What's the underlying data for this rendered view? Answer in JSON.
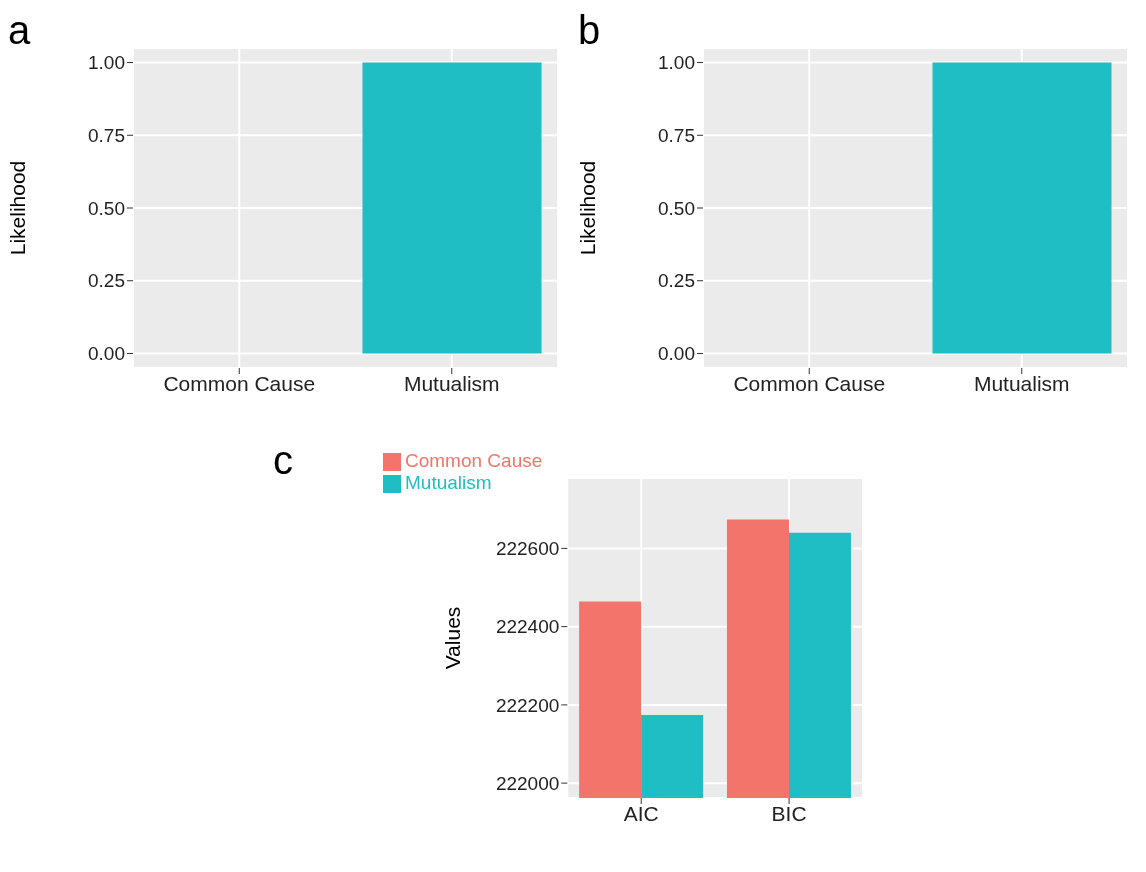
{
  "chart_data": [
    {
      "type": "bar",
      "title": "a",
      "ylabel": "Likelihood",
      "categories": [
        "Common Cause",
        "Mutualism"
      ],
      "values": [
        0,
        1
      ],
      "colors": [
        "#f8766d",
        "#1fbec4"
      ],
      "ylim": [
        -0.05,
        1.05
      ],
      "yticks": [
        {
          "value": 0,
          "label": "0.00"
        },
        {
          "value": 0.25,
          "label": "0.25"
        },
        {
          "value": 0.5,
          "label": "0.50"
        },
        {
          "value": 0.75,
          "label": "0.75"
        },
        {
          "value": 1,
          "label": "1.00"
        }
      ],
      "grid": true
    },
    {
      "type": "bar",
      "title": "b",
      "ylabel": "Likelihood",
      "categories": [
        "Common Cause",
        "Mutualism"
      ],
      "values": [
        0,
        1
      ],
      "colors": [
        "#f8766d",
        "#1fbec4"
      ],
      "ylim": [
        -0.05,
        1.05
      ],
      "yticks": [
        {
          "value": 0,
          "label": "0.00"
        },
        {
          "value": 0.25,
          "label": "0.25"
        },
        {
          "value": 0.5,
          "label": "0.50"
        },
        {
          "value": 0.75,
          "label": "0.75"
        },
        {
          "value": 1,
          "label": "1.00"
        }
      ],
      "grid": true
    },
    {
      "type": "bar",
      "title": "c",
      "ylabel": "Values",
      "categories": [
        "AIC",
        "BIC"
      ],
      "series": [
        {
          "name": "Common Cause",
          "color": "#f3746b",
          "values": [
            222464,
            222674
          ]
        },
        {
          "name": "Mutualism",
          "color": "#1fbec4",
          "values": [
            222174,
            222640
          ]
        }
      ],
      "ylim": [
        221962,
        222780
      ],
      "yticks": [
        222000,
        222200,
        222400,
        222600
      ],
      "grid": true,
      "legend": "top left"
    }
  ]
}
